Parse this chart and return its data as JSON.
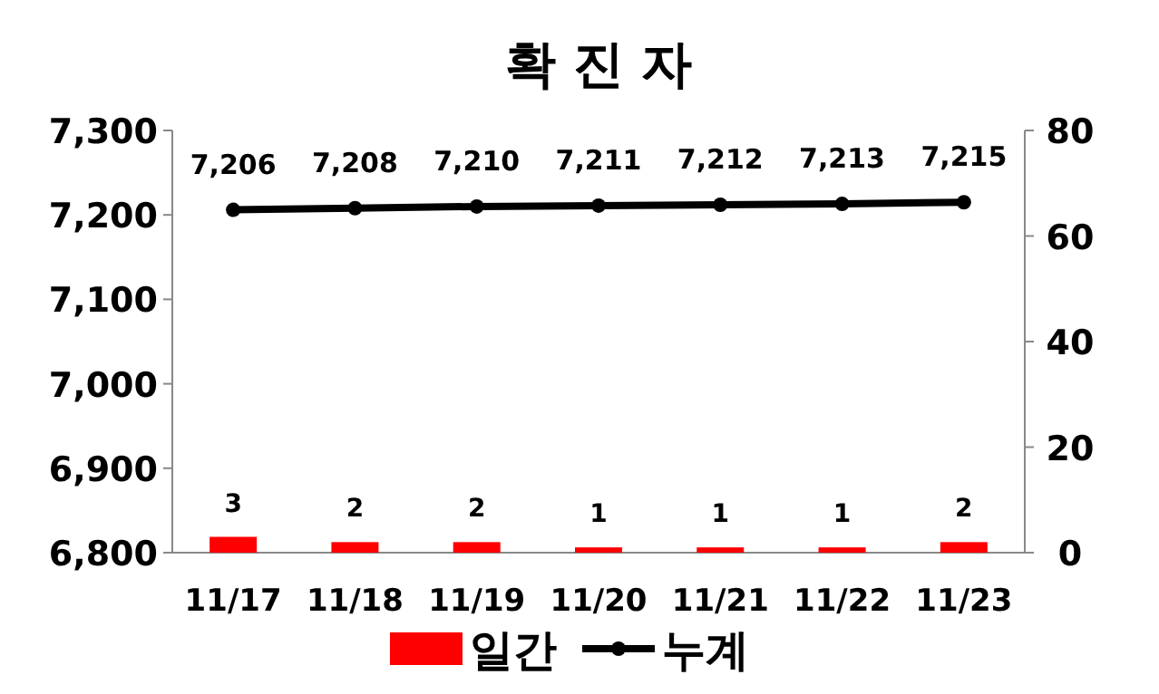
{
  "chart_data": {
    "type": "bar",
    "title": "확 진 자",
    "categories": [
      "11/17",
      "11/18",
      "11/19",
      "11/20",
      "11/21",
      "11/22",
      "11/23"
    ],
    "series": [
      {
        "name": "일간",
        "axis": "y2",
        "color": "#ff0000",
        "values": [
          3,
          2,
          2,
          1,
          1,
          1,
          2
        ],
        "value_labels": [
          "3",
          "2",
          "2",
          "1",
          "1",
          "1",
          "2"
        ]
      },
      {
        "name": "누계",
        "type": "line",
        "color": "#000000",
        "marker": "circle",
        "values": [
          7206,
          7208,
          7210,
          7211,
          7212,
          7213,
          7215
        ],
        "value_labels": [
          "7,206",
          "7,208",
          "7,210",
          "7,211",
          "7,212",
          "7,213",
          "7,215"
        ]
      }
    ],
    "ylim": [
      6800,
      7300
    ],
    "yticks": [
      {
        "value": 6800,
        "label": "6,800"
      },
      {
        "value": 6900,
        "label": "6,900"
      },
      {
        "value": 7000,
        "label": "7,000"
      },
      {
        "value": 7100,
        "label": "7,100"
      },
      {
        "value": 7200,
        "label": "7,200"
      },
      {
        "value": 7300,
        "label": "7,300"
      }
    ],
    "y2lim": [
      0,
      80
    ],
    "y2ticks": [
      0,
      20,
      40,
      60,
      80
    ],
    "legend": "bottom"
  }
}
